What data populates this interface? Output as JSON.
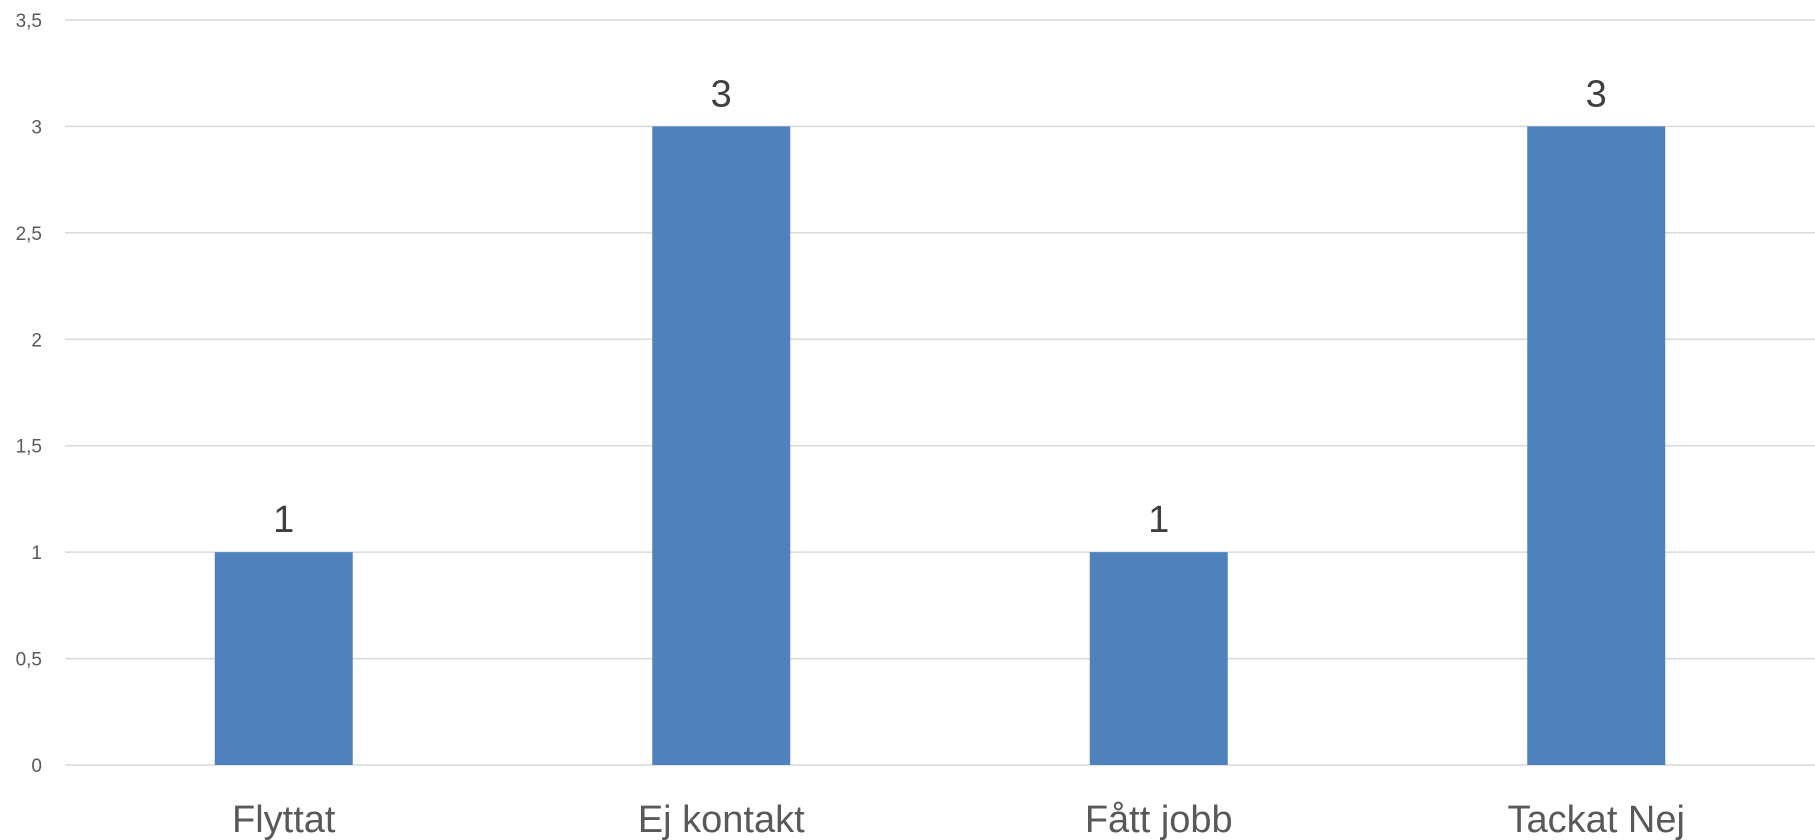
{
  "chart_data": {
    "type": "bar",
    "categories": [
      "Flyttat",
      "Ej kontakt",
      "Fått jobb",
      "Tackat Nej"
    ],
    "values": [
      1,
      3,
      1,
      3
    ],
    "data_labels": [
      "1",
      "3",
      "1",
      "3"
    ],
    "ylim": [
      0,
      3.5
    ],
    "yticks": [
      0,
      0.5,
      1,
      1.5,
      2,
      2.5,
      3,
      3.5
    ],
    "ytick_labels": [
      "0",
      "0,5",
      "1",
      "1,5",
      "2",
      "2,5",
      "3",
      "3,5"
    ],
    "grid": true,
    "legend": "none",
    "colors": {
      "bar": "#4F81BD",
      "grid": "#D9D9D9"
    }
  }
}
